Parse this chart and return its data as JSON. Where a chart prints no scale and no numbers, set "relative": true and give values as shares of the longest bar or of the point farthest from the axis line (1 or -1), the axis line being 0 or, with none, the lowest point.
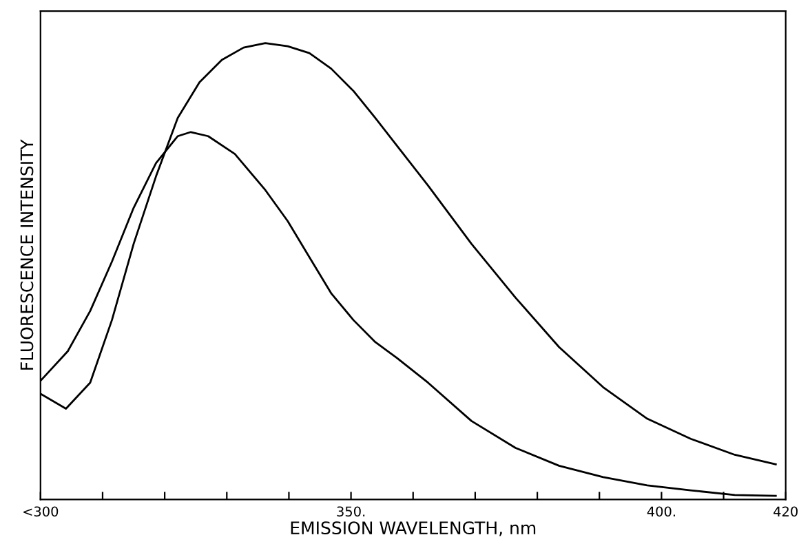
{
  "chart_data": {
    "type": "line",
    "xlabel": "EMISSION WAVELENGTH, nm",
    "ylabel": "FLUORESCENCE INTENSITY",
    "relative": true,
    "grid": false,
    "legend": false,
    "xlim": [
      300,
      420
    ],
    "xticks": [
      {
        "value": 300,
        "label": "<300"
      },
      {
        "value": 310,
        "label": null
      },
      {
        "value": 320,
        "label": null
      },
      {
        "value": 330,
        "label": null
      },
      {
        "value": 340,
        "label": null
      },
      {
        "value": 350,
        "label": "350."
      },
      {
        "value": 360,
        "label": null
      },
      {
        "value": 370,
        "label": null
      },
      {
        "value": 380,
        "label": null
      },
      {
        "value": 390,
        "label": null
      },
      {
        "value": 400,
        "label": "400."
      },
      {
        "value": 410,
        "label": null
      },
      {
        "value": 420,
        "label": "420"
      }
    ],
    "series": [
      {
        "color": "#000000",
        "x": [
          300.07,
          304.1,
          308.0,
          311.5,
          315.0,
          318.6,
          322.1,
          325.6,
          329.2,
          332.7,
          336.2,
          339.8,
          343.3,
          346.8,
          350.4,
          353.9,
          357.4,
          362.4,
          369.4,
          376.5,
          383.5,
          390.6,
          397.7,
          404.7,
          411.8,
          418.4
        ],
        "values": [
          0.231,
          0.199,
          0.256,
          0.393,
          0.56,
          0.708,
          0.836,
          0.914,
          0.963,
          0.99,
          1.0,
          0.993,
          0.978,
          0.944,
          0.895,
          0.836,
          0.775,
          0.688,
          0.56,
          0.442,
          0.334,
          0.246,
          0.177,
          0.133,
          0.098,
          0.077
        ]
      },
      {
        "color": "#000000",
        "x": [
          300.07,
          304.4,
          308.0,
          311.5,
          315.0,
          318.6,
          322.1,
          324.2,
          327.0,
          331.3,
          336.2,
          339.8,
          343.3,
          346.8,
          350.4,
          353.9,
          357.4,
          362.4,
          369.4,
          376.5,
          383.5,
          390.6,
          397.7,
          404.7,
          411.8,
          418.4
        ],
        "values": [
          0.261,
          0.325,
          0.413,
          0.521,
          0.639,
          0.737,
          0.796,
          0.805,
          0.796,
          0.757,
          0.678,
          0.61,
          0.531,
          0.452,
          0.393,
          0.345,
          0.31,
          0.256,
          0.172,
          0.113,
          0.074,
          0.049,
          0.031,
          0.02,
          0.01,
          0.008
        ]
      }
    ]
  }
}
